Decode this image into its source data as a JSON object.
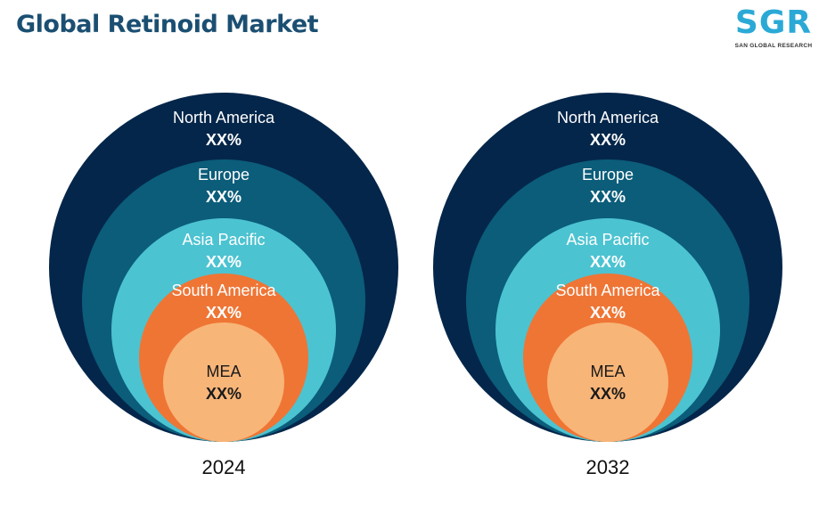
{
  "header": {
    "title": "Global Retinoid Market"
  },
  "logo": {
    "mark": "SGR",
    "subtitle": "SAN GLOBAL RESEARCH"
  },
  "palette": {
    "north_america": "#04264a",
    "europe": "#0b5d7a",
    "asia_pacific": "#4cc3d1",
    "south_america": "#ef7535",
    "mea": "#f8b578",
    "title": "#1b4f72"
  },
  "diagrams": [
    {
      "year": "2024",
      "regions": [
        {
          "name": "North America",
          "value": "XX%"
        },
        {
          "name": "Europe",
          "value": "XX%"
        },
        {
          "name": "Asia Pacific",
          "value": "XX%"
        },
        {
          "name": "South America",
          "value": "XX%"
        },
        {
          "name": "MEA",
          "value": "XX%"
        }
      ]
    },
    {
      "year": "2032",
      "regions": [
        {
          "name": "North America",
          "value": "XX%"
        },
        {
          "name": "Europe",
          "value": "XX%"
        },
        {
          "name": "Asia Pacific",
          "value": "XX%"
        },
        {
          "name": "South America",
          "value": "XX%"
        },
        {
          "name": "MEA",
          "value": "XX%"
        }
      ]
    }
  ]
}
